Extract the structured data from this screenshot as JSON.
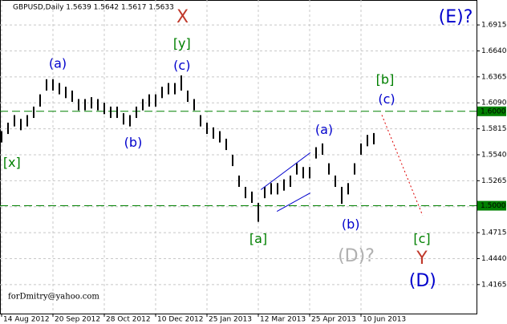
{
  "chart_data": {
    "type": "ohlc",
    "subtitle": "GBPUSD,Daily  1.5639 1.5642 1.5617 1.5633",
    "watermark": "forDmitry@yahoo.com",
    "color": "#000000",
    "grid": true,
    "xlim": [
      -0.25,
      74
    ],
    "ylim": [
      1.3858,
      1.7179
    ],
    "xticks": [
      {
        "value": 0,
        "label": "14 Aug 2012"
      },
      {
        "value": 8,
        "label": "20 Sep 2012"
      },
      {
        "value": 16,
        "label": "28 Oct 2012"
      },
      {
        "value": 24,
        "label": "10 Dec 2012"
      },
      {
        "value": 32,
        "label": "25 Jan 2013"
      },
      {
        "value": 40,
        "label": "12 Mar 2013"
      },
      {
        "value": 48,
        "label": "25 Apr 2013"
      },
      {
        "value": 56,
        "label": "10 Jun 2013"
      }
    ],
    "yticks": [
      1.6915,
      {
        "value": 1.664,
        "label": "1.6640"
      },
      1.6365,
      {
        "value": 1.609,
        "label": "1.6090"
      },
      1.5815,
      {
        "value": 1.554,
        "label": "1.5540"
      },
      1.5265,
      {
        "value": 1.499,
        "label": "1.4990"
      },
      1.4715,
      {
        "value": 1.444,
        "label": "1.4440"
      },
      1.4165
    ],
    "high": [
      1.579,
      1.588,
      1.596,
      1.592,
      1.596,
      1.605,
      1.618,
      1.634,
      1.634,
      1.63,
      1.626,
      1.622,
      1.613,
      1.613,
      1.615,
      1.613,
      1.609,
      1.605,
      1.605,
      1.598,
      1.596,
      1.605,
      1.613,
      1.618,
      1.618,
      1.626,
      1.63,
      1.63,
      1.638,
      1.622,
      1.613,
      1.596,
      1.588,
      1.583,
      1.579,
      1.571,
      1.554,
      1.532,
      1.52,
      1.515,
      1.503,
      1.52,
      1.524,
      1.524,
      1.528,
      1.532,
      1.545,
      1.541,
      1.541,
      1.562,
      1.566,
      1.545,
      1.532,
      1.52,
      1.524,
      1.545,
      1.566,
      1.575,
      1.577
    ],
    "low": [
      1.567,
      1.576,
      1.584,
      1.58,
      1.584,
      1.593,
      1.605,
      1.622,
      1.622,
      1.618,
      1.614,
      1.61,
      1.601,
      1.601,
      1.603,
      1.601,
      1.597,
      1.593,
      1.593,
      1.586,
      1.584,
      1.593,
      1.601,
      1.605,
      1.605,
      1.614,
      1.618,
      1.618,
      1.622,
      1.61,
      1.601,
      1.584,
      1.576,
      1.571,
      1.567,
      1.559,
      1.542,
      1.52,
      1.508,
      1.503,
      1.483,
      1.508,
      1.512,
      1.512,
      1.516,
      1.52,
      1.533,
      1.529,
      1.529,
      1.55,
      1.554,
      1.533,
      1.52,
      1.502,
      1.512,
      1.533,
      1.554,
      1.563,
      1.565
    ],
    "hlines": [
      {
        "value": 1.6,
        "label": "1.6000",
        "color": "#008000"
      },
      {
        "value": 1.5,
        "label": "1.5000",
        "color": "#008000"
      }
    ],
    "lines": [
      {
        "x": [
          40.4,
          48.1
        ],
        "y": [
          1.517,
          1.5562
        ],
        "color": "#0000cc",
        "style": "solid"
      },
      {
        "x": [
          42.9,
          48.1
        ],
        "y": [
          1.494,
          1.5136
        ],
        "color": "#0000cc",
        "style": "solid"
      },
      {
        "x": [
          59.25,
          65.6
        ],
        "y": [
          1.5961,
          1.4897
        ],
        "color": "#dd0000",
        "style": "dotted"
      }
    ],
    "annotations": [
      {
        "text": "X",
        "x": 28.2,
        "y": 1.6992,
        "color": "#c0392b",
        "size": "large"
      },
      {
        "text": "[y]",
        "x": 28.1,
        "y": 1.6711,
        "color": "#008000",
        "size": "normal"
      },
      {
        "text": "(c)",
        "x": 28.1,
        "y": 1.648,
        "color": "#0000cc",
        "size": "normal"
      },
      {
        "text": "(a)",
        "x": 8.75,
        "y": 1.6498,
        "color": "#0000cc",
        "size": "normal"
      },
      {
        "text": "(b)",
        "x": 20.5,
        "y": 1.5663,
        "color": "#0000cc",
        "size": "normal"
      },
      {
        "text": "[x]",
        "x": 1.6,
        "y": 1.5451,
        "color": "#008000",
        "size": "normal"
      },
      {
        "text": "[a]",
        "x": 40,
        "y": 1.4642,
        "color": "#008000",
        "size": "normal"
      },
      {
        "text": "(a)",
        "x": 50.25,
        "y": 1.58,
        "color": "#0000cc",
        "size": "normal"
      },
      {
        "text": "(b)",
        "x": 54.4,
        "y": 1.4795,
        "color": "#0000cc",
        "size": "normal"
      },
      {
        "text": "[b]",
        "x": 59.75,
        "y": 1.6328,
        "color": "#008000",
        "size": "normal"
      },
      {
        "text": "(c)",
        "x": 60,
        "y": 1.6123,
        "color": "#0000cc",
        "size": "normal"
      },
      {
        "text": "(D)?",
        "x": 55.25,
        "y": 1.4463,
        "color": "#b0b0b0",
        "size": "large"
      },
      {
        "text": "[c]",
        "x": 65.5,
        "y": 1.4642,
        "color": "#008000",
        "size": "normal"
      },
      {
        "text": "Y",
        "x": 65.5,
        "y": 1.4437,
        "color": "#c0392b",
        "size": "large"
      },
      {
        "text": "(D)",
        "x": 65.6,
        "y": 1.4199,
        "color": "#0000cc",
        "size": "large"
      },
      {
        "text": "(E)?",
        "x": 70.75,
        "y": 1.6992,
        "color": "#0000cc",
        "size": "large"
      }
    ]
  }
}
